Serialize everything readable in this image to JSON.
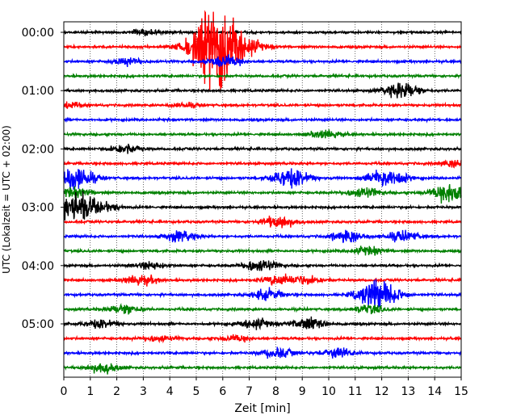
{
  "chart_data": {
    "type": "line",
    "title": "",
    "xlabel": "Zeit  [min]",
    "ylabel": "UTC (Lokalzeit = UTC + 02:00)",
    "xlim": [
      0,
      15
    ],
    "x_ticks": [
      "0",
      "1",
      "2",
      "3",
      "4",
      "5",
      "6",
      "7",
      "8",
      "9",
      "10",
      "11",
      "12",
      "13",
      "14",
      "15"
    ],
    "y_tick_labels": [
      "00:00",
      "01:00",
      "02:00",
      "03:00",
      "04:00",
      "05:00"
    ],
    "grid": "vertical dotted at each minute",
    "trace_interval_minutes": 15,
    "trace_colors": [
      "#000000",
      "#ff0000",
      "#0000ff",
      "#008000"
    ],
    "traces": [
      {
        "start": "00:00",
        "color": "#000000",
        "events": [
          {
            "t": 3.1,
            "amp": 0.3
          }
        ]
      },
      {
        "start": "00:15",
        "color": "#ff0000",
        "events": [
          {
            "t": 5.9,
            "amp": 3.2
          },
          {
            "t": 5.6,
            "amp": 1.0
          }
        ]
      },
      {
        "start": "00:30",
        "color": "#0000ff",
        "events": [
          {
            "t": 2.4,
            "amp": 0.35
          },
          {
            "t": 6.1,
            "amp": 0.6
          }
        ]
      },
      {
        "start": "00:45",
        "color": "#008000",
        "events": []
      },
      {
        "start": "01:00",
        "color": "#000000",
        "events": [
          {
            "t": 12.8,
            "amp": 0.8
          }
        ]
      },
      {
        "start": "01:15",
        "color": "#ff0000",
        "events": [
          {
            "t": 0.1,
            "amp": 0.3
          },
          {
            "t": 4.6,
            "amp": 0.2
          }
        ]
      },
      {
        "start": "01:30",
        "color": "#0000ff",
        "events": []
      },
      {
        "start": "01:45",
        "color": "#008000",
        "events": [
          {
            "t": 9.9,
            "amp": 0.4
          }
        ]
      },
      {
        "start": "02:00",
        "color": "#000000",
        "events": [
          {
            "t": 2.3,
            "amp": 0.45
          }
        ]
      },
      {
        "start": "02:15",
        "color": "#ff0000",
        "events": [
          {
            "t": 14.9,
            "amp": 0.4
          }
        ]
      },
      {
        "start": "02:30",
        "color": "#0000ff",
        "events": [
          {
            "t": 0.4,
            "amp": 1.2
          },
          {
            "t": 8.6,
            "amp": 1.0
          },
          {
            "t": 12.2,
            "amp": 1.0
          }
        ]
      },
      {
        "start": "02:45",
        "color": "#008000",
        "events": [
          {
            "t": 11.3,
            "amp": 0.5
          },
          {
            "t": 14.6,
            "amp": 1.0
          },
          {
            "t": 0.4,
            "amp": 0.5
          }
        ]
      },
      {
        "start": "03:00",
        "color": "#000000",
        "events": [
          {
            "t": 0.4,
            "amp": 1.4
          },
          {
            "t": 1.5,
            "amp": 0.4
          }
        ]
      },
      {
        "start": "03:15",
        "color": "#ff0000",
        "events": [
          {
            "t": 8.1,
            "amp": 0.6
          }
        ]
      },
      {
        "start": "03:30",
        "color": "#0000ff",
        "events": [
          {
            "t": 4.4,
            "amp": 0.5
          },
          {
            "t": 10.7,
            "amp": 0.6
          },
          {
            "t": 12.8,
            "amp": 0.5
          }
        ]
      },
      {
        "start": "03:45",
        "color": "#008000",
        "events": [
          {
            "t": 11.5,
            "amp": 0.4
          }
        ]
      },
      {
        "start": "04:00",
        "color": "#000000",
        "events": [
          {
            "t": 3.3,
            "amp": 0.35
          },
          {
            "t": 7.4,
            "amp": 0.6
          }
        ]
      },
      {
        "start": "04:15",
        "color": "#ff0000",
        "events": [
          {
            "t": 2.9,
            "amp": 0.5
          },
          {
            "t": 8.1,
            "amp": 0.5
          },
          {
            "t": 9.2,
            "amp": 0.4
          }
        ]
      },
      {
        "start": "04:30",
        "color": "#0000ff",
        "events": [
          {
            "t": 7.7,
            "amp": 0.5
          },
          {
            "t": 11.9,
            "amp": 1.5
          }
        ]
      },
      {
        "start": "04:45",
        "color": "#008000",
        "events": [
          {
            "t": 2.3,
            "amp": 0.5
          },
          {
            "t": 11.5,
            "amp": 0.4
          }
        ]
      },
      {
        "start": "05:00",
        "color": "#000000",
        "events": [
          {
            "t": 1.4,
            "amp": 0.45
          },
          {
            "t": 7.2,
            "amp": 0.5
          },
          {
            "t": 9.2,
            "amp": 0.6
          }
        ]
      },
      {
        "start": "05:15",
        "color": "#ff0000",
        "events": [
          {
            "t": 3.6,
            "amp": 0.3
          },
          {
            "t": 6.5,
            "amp": 0.3
          }
        ]
      },
      {
        "start": "05:30",
        "color": "#0000ff",
        "events": [
          {
            "t": 8.1,
            "amp": 0.5
          },
          {
            "t": 10.3,
            "amp": 0.5
          }
        ]
      },
      {
        "start": "05:45",
        "color": "#008000",
        "events": [
          {
            "t": 1.5,
            "amp": 0.5
          }
        ]
      }
    ]
  }
}
